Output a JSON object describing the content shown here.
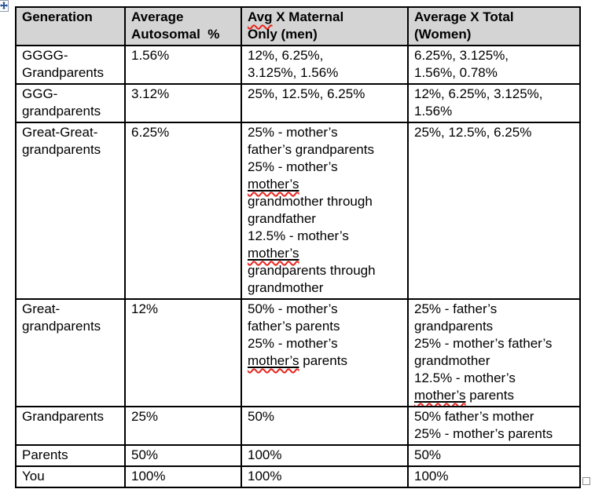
{
  "colors": {
    "header_bg": "#d4d4d4",
    "table_border": "#000000",
    "spellcheck_squiggle": "#e8261f"
  },
  "icons": {
    "move_handle": "table-move-handle-icon",
    "resize_handle": "table-resize-handle-icon"
  },
  "table": {
    "header": {
      "cells": [
        {
          "name": "generation",
          "text": "Generation"
        },
        {
          "name": "average-autosomal",
          "text": "Average\nAutosomal  %"
        },
        {
          "name": "avg-x-maternal-only-men",
          "segments": [
            {
              "t": "Avg",
              "spell": true
            },
            {
              "t": " X Maternal\nOnly (men)"
            }
          ]
        },
        {
          "name": "average-x-total-women",
          "text": "Average X Total\n(Women)"
        }
      ]
    },
    "rows": [
      {
        "cells": [
          "GGGG-\nGrandparents",
          "1.56%",
          "12%, 6.25%,\n3.125%, 1.56%",
          "6.25%, 3.125%,\n1.56%, 0.78%"
        ]
      },
      {
        "cells": [
          "GGG-\ngrandparents",
          "3.12%",
          "25%, 12.5%, 6.25%",
          "12%, 6.25%, 3.125%,\n1.56%"
        ]
      },
      {
        "cells": [
          "Great-Great-\ngrandparents",
          "6.25%",
          {
            "segments": [
              {
                "t": "25% - mother’s\nfather’s grandparents\n25% - mother’s\n"
              },
              {
                "t": "mother’s",
                "spell": true,
                "u": true
              },
              {
                "t": "\ngrandmother through\ngrandfather\n12.5% - mother’s\n"
              },
              {
                "t": "mother’s",
                "spell": true,
                "u": true
              },
              {
                "t": "\ngrandparents through\ngrandmother"
              }
            ]
          },
          "25%, 12.5%, 6.25%"
        ]
      },
      {
        "cells": [
          "Great-\ngrandparents",
          "12%",
          {
            "segments": [
              {
                "t": "50% - mother’s\nfather’s parents\n25% - mother’s\n"
              },
              {
                "t": "mother’s",
                "spell": true,
                "u": true
              },
              {
                "t": " parents"
              }
            ]
          },
          {
            "segments": [
              {
                "t": "25% - father’s\ngrandparents\n25% - mother’s father’s\ngrandmother\n12.5% - mother’s\n"
              },
              {
                "t": "mother’s",
                "spell": true,
                "u": true
              },
              {
                "t": " parents"
              }
            ]
          }
        ]
      },
      {
        "cells": [
          "Grandparents",
          "25%",
          "50%",
          "50% father’s mother\n25% - mother’s parents"
        ]
      },
      {
        "cells": [
          "Parents",
          "50%",
          "100%",
          "50%"
        ]
      },
      {
        "cells": [
          "You",
          "100%",
          "100%",
          "100%"
        ]
      }
    ]
  }
}
